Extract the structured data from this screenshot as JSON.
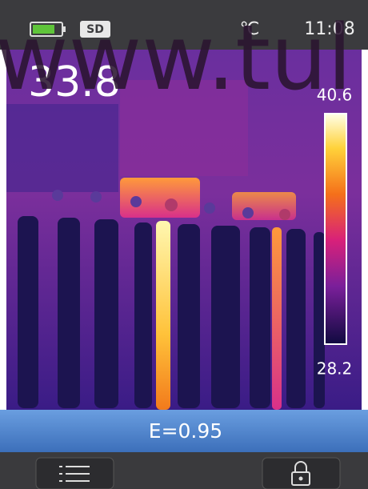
{
  "status_bar": {
    "storage": "SD",
    "unit": "℃",
    "time": "11:08"
  },
  "center_temperature": "33.8",
  "scale": {
    "max": "40.6",
    "min": "28.2"
  },
  "emissivity": "E=0.95",
  "watermark": "www.tul"
}
